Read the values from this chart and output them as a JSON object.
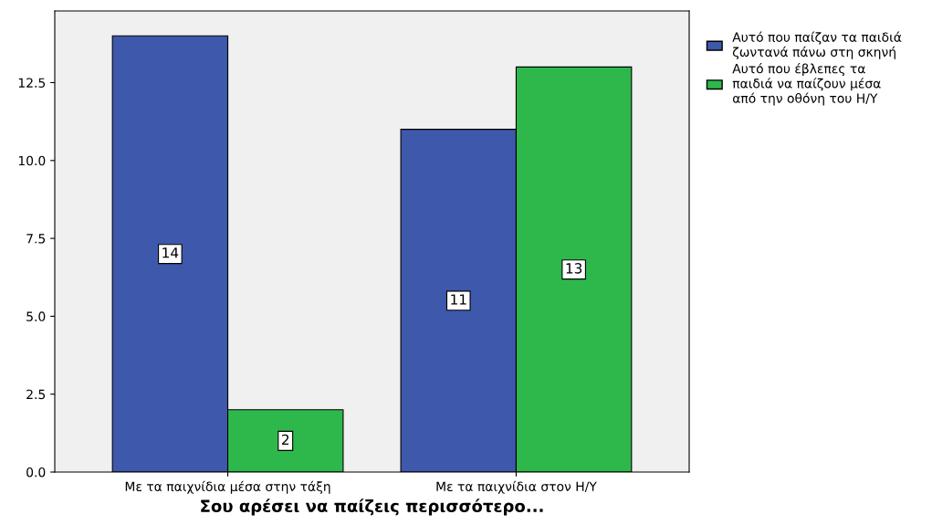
{
  "chart_data": {
    "type": "bar",
    "xlabel": "Σου αρέσει να παίζεις περισσότερο...",
    "categories": [
      "Με τα παιχνίδια μέσα στην τάξη",
      "Με τα παιχνίδια στον Η/Υ"
    ],
    "series": [
      {
        "name": "Αυτό που παίζαν τα παιδιά\nζωντανά πάνω στη σκηνή",
        "color": "#3e58ac",
        "values": [
          14,
          11
        ]
      },
      {
        "name": "Αυτό που έβλεπες τα\nπαιδιά να παίζουν μέσα\nαπό την οθόνη του Η/Υ",
        "color": "#2eb84b",
        "values": [
          2,
          13
        ]
      }
    ],
    "ylim": [
      0,
      14.8
    ],
    "yticks": [
      {
        "value": 0,
        "label": "0.0"
      },
      {
        "value": 2.5,
        "label": "2.5"
      },
      {
        "value": 5,
        "label": "5.0"
      },
      {
        "value": 7.5,
        "label": "7.5"
      },
      {
        "value": 10,
        "label": "10.0"
      },
      {
        "value": 12.5,
        "label": "12.5"
      }
    ],
    "grid": false,
    "legend": "right",
    "data_labels": true
  }
}
